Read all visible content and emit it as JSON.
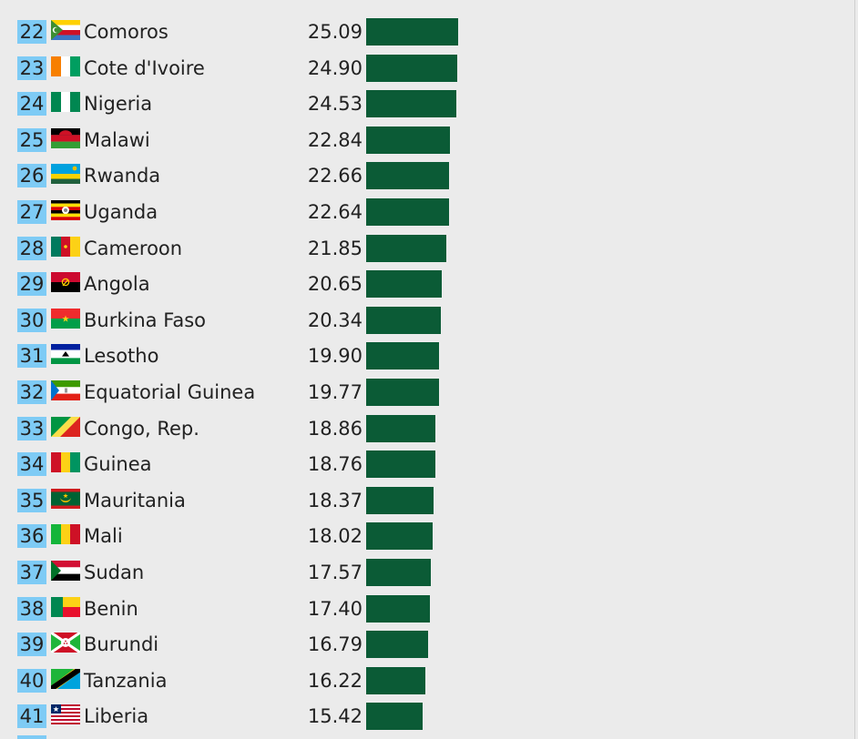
{
  "chart_data": {
    "type": "bar",
    "orientation": "horizontal",
    "rows": [
      {
        "rank": "22",
        "country": "Comoros",
        "value": "25.09",
        "flag": "comoros-flag"
      },
      {
        "rank": "23",
        "country": "Cote d'Ivoire",
        "value": "24.90",
        "flag": "cote-divoire-flag"
      },
      {
        "rank": "24",
        "country": "Nigeria",
        "value": "24.53",
        "flag": "nigeria-flag"
      },
      {
        "rank": "25",
        "country": "Malawi",
        "value": "22.84",
        "flag": "malawi-flag"
      },
      {
        "rank": "26",
        "country": "Rwanda",
        "value": "22.66",
        "flag": "rwanda-flag"
      },
      {
        "rank": "27",
        "country": "Uganda",
        "value": "22.64",
        "flag": "uganda-flag"
      },
      {
        "rank": "28",
        "country": "Cameroon",
        "value": "21.85",
        "flag": "cameroon-flag"
      },
      {
        "rank": "29",
        "country": "Angola",
        "value": "20.65",
        "flag": "angola-flag"
      },
      {
        "rank": "30",
        "country": "Burkina Faso",
        "value": "20.34",
        "flag": "burkina-faso-flag"
      },
      {
        "rank": "31",
        "country": "Lesotho",
        "value": "19.90",
        "flag": "lesotho-flag"
      },
      {
        "rank": "32",
        "country": "Equatorial Guinea",
        "value": "19.77",
        "flag": "equatorial-guinea-flag"
      },
      {
        "rank": "33",
        "country": "Congo, Rep.",
        "value": "18.86",
        "flag": "congo-rep-flag"
      },
      {
        "rank": "34",
        "country": "Guinea",
        "value": "18.76",
        "flag": "guinea-flag"
      },
      {
        "rank": "35",
        "country": "Mauritania",
        "value": "18.37",
        "flag": "mauritania-flag"
      },
      {
        "rank": "36",
        "country": "Mali",
        "value": "18.02",
        "flag": "mali-flag"
      },
      {
        "rank": "37",
        "country": "Sudan",
        "value": "17.57",
        "flag": "sudan-flag"
      },
      {
        "rank": "38",
        "country": "Benin",
        "value": "17.40",
        "flag": "benin-flag"
      },
      {
        "rank": "39",
        "country": "Burundi",
        "value": "16.79",
        "flag": "burundi-flag"
      },
      {
        "rank": "40",
        "country": "Tanzania",
        "value": "16.22",
        "flag": "tanzania-flag"
      },
      {
        "rank": "41",
        "country": "Liberia",
        "value": "15.42",
        "flag": "liberia-flag"
      }
    ],
    "colors": {
      "bar": "#0b5b36",
      "rank_badge": "#7ecbf5",
      "background": "#ebebeb"
    }
  }
}
